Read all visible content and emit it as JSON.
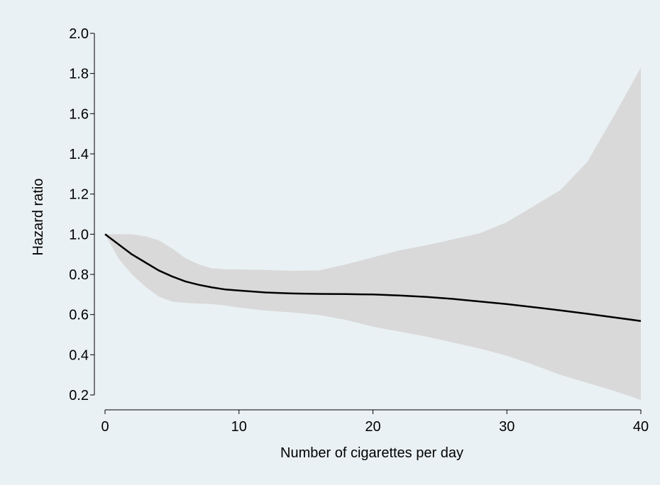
{
  "chart_data": {
    "type": "line",
    "title": "",
    "xlabel": "Number of cigarettes per day",
    "ylabel": "Hazard ratio",
    "xlim": [
      0,
      40
    ],
    "ylim": [
      0.2,
      2.0
    ],
    "xticks": [
      0,
      10,
      20,
      30,
      40
    ],
    "yticks": [
      0.2,
      0.4,
      0.6,
      0.8,
      1.0,
      1.2,
      1.4,
      1.6,
      1.8,
      2.0
    ],
    "xtick_labels": [
      "0",
      "10",
      "20",
      "30",
      "40"
    ],
    "ytick_labels": [
      "0.2",
      "0.4",
      "0.6",
      "0.8",
      "1.0",
      "1.2",
      "1.4",
      "1.6",
      "1.8",
      "2.0"
    ],
    "grid": false,
    "legend": "none",
    "colors": {
      "background": "#eaf1f4",
      "band": "#d9d9d9",
      "line": "#000000"
    },
    "x": [
      0,
      1,
      2,
      3,
      4,
      5,
      6,
      7,
      8,
      9,
      10,
      12,
      14,
      16,
      18,
      20,
      22,
      24,
      26,
      28,
      30,
      32,
      34,
      36,
      38,
      40
    ],
    "series": [
      {
        "values": [
          1.0,
          0.95,
          0.9,
          0.86,
          0.82,
          0.79,
          0.765,
          0.748,
          0.735,
          0.725,
          0.72,
          0.71,
          0.705,
          0.703,
          0.702,
          0.7,
          0.695,
          0.688,
          0.678,
          0.665,
          0.652,
          0.637,
          0.621,
          0.604,
          0.586,
          0.568
        ]
      }
    ],
    "band_upper": [
      1.0,
      1.0,
      1.0,
      0.99,
      0.97,
      0.93,
      0.88,
      0.85,
      0.83,
      0.825,
      0.825,
      0.822,
      0.818,
      0.82,
      0.85,
      0.885,
      0.92,
      0.945,
      0.975,
      1.005,
      1.06,
      1.14,
      1.22,
      1.36,
      1.59,
      1.83
    ],
    "band_lower": [
      1.0,
      0.88,
      0.8,
      0.74,
      0.69,
      0.665,
      0.658,
      0.655,
      0.652,
      0.645,
      0.635,
      0.62,
      0.61,
      0.598,
      0.573,
      0.54,
      0.515,
      0.49,
      0.46,
      0.43,
      0.395,
      0.35,
      0.3,
      0.26,
      0.22,
      0.175
    ]
  }
}
